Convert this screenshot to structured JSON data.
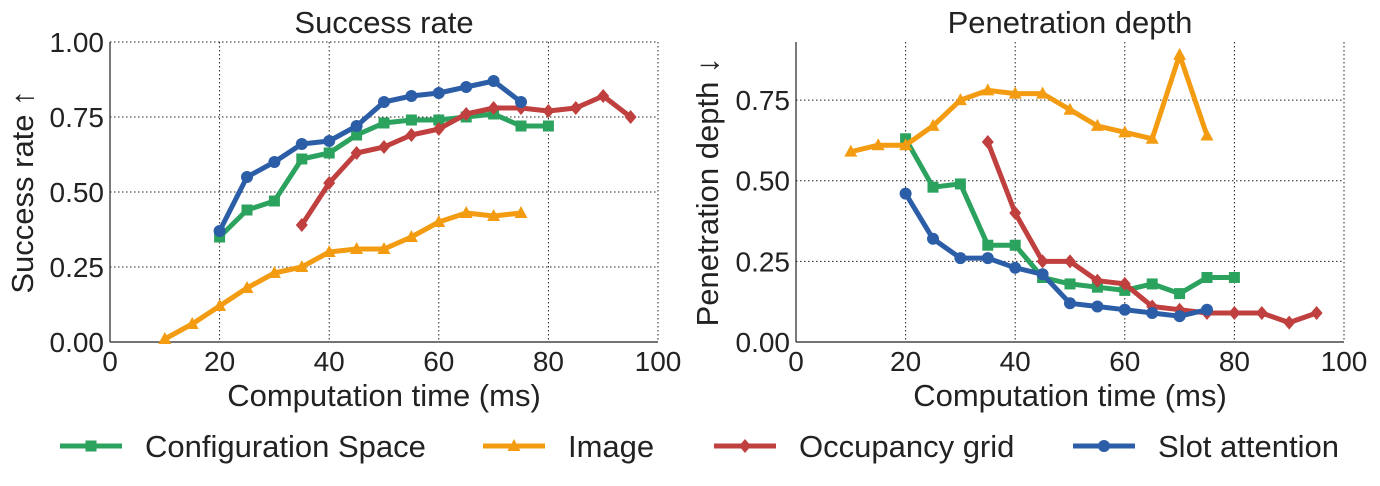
{
  "chart_data": [
    {
      "type": "line",
      "title": "Success rate",
      "xlabel": "Computation time (ms)",
      "ylabel": "Success rate ↑",
      "xlim": [
        0,
        100
      ],
      "ylim": [
        0,
        1.0
      ],
      "xticks": [
        0,
        20,
        40,
        60,
        80,
        100
      ],
      "xtick_labels": [
        "0",
        "20",
        "40",
        "60",
        "80",
        "100"
      ],
      "yticks": [
        0,
        0.25,
        0.5,
        0.75,
        1.0
      ],
      "ytick_labels": [
        "0.00",
        "0.25",
        "0.50",
        "0.75",
        "1.00"
      ],
      "grid": true,
      "series": [
        {
          "name": "Configuration Space",
          "x": [
            20,
            25,
            30,
            35,
            40,
            45,
            50,
            55,
            60,
            65,
            70,
            75,
            80
          ],
          "y": [
            0.35,
            0.44,
            0.47,
            0.61,
            0.63,
            0.69,
            0.73,
            0.74,
            0.74,
            0.75,
            0.76,
            0.72,
            0.72
          ]
        },
        {
          "name": "Image",
          "x": [
            10,
            15,
            20,
            25,
            30,
            35,
            40,
            45,
            50,
            55,
            60,
            65,
            70,
            75
          ],
          "y": [
            0.01,
            0.06,
            0.12,
            0.18,
            0.23,
            0.25,
            0.3,
            0.31,
            0.31,
            0.35,
            0.4,
            0.43,
            0.42,
            0.43
          ]
        },
        {
          "name": "Occupancy grid",
          "x": [
            35,
            40,
            45,
            50,
            55,
            60,
            65,
            70,
            75,
            80,
            85,
            90,
            95
          ],
          "y": [
            0.39,
            0.53,
            0.63,
            0.65,
            0.69,
            0.71,
            0.76,
            0.78,
            0.78,
            0.77,
            0.78,
            0.82,
            0.75
          ]
        },
        {
          "name": "Slot attention",
          "x": [
            20,
            25,
            30,
            35,
            40,
            45,
            50,
            55,
            60,
            65,
            70,
            75
          ],
          "y": [
            0.37,
            0.55,
            0.6,
            0.66,
            0.67,
            0.72,
            0.8,
            0.82,
            0.83,
            0.85,
            0.87,
            0.8
          ]
        }
      ]
    },
    {
      "type": "line",
      "title": "Penetration depth",
      "xlabel": "Computation time (ms)",
      "ylabel": "Penetration depth ↓",
      "xlim": [
        0,
        100
      ],
      "ylim": [
        0,
        0.93
      ],
      "xticks": [
        0,
        20,
        40,
        60,
        80,
        100
      ],
      "xtick_labels": [
        "0",
        "20",
        "40",
        "60",
        "80",
        "100"
      ],
      "yticks": [
        0,
        0.25,
        0.5,
        0.75
      ],
      "ytick_labels": [
        "0.00",
        "0.25",
        "0.50",
        "0.75"
      ],
      "grid": true,
      "series": [
        {
          "name": "Configuration Space",
          "x": [
            20,
            25,
            30,
            35,
            40,
            45,
            50,
            55,
            60,
            65,
            70,
            75,
            80
          ],
          "y": [
            0.63,
            0.48,
            0.49,
            0.3,
            0.3,
            0.2,
            0.18,
            0.17,
            0.16,
            0.18,
            0.15,
            0.2,
            0.2
          ]
        },
        {
          "name": "Image",
          "x": [
            10,
            15,
            20,
            25,
            30,
            35,
            40,
            45,
            50,
            55,
            60,
            65,
            70,
            75
          ],
          "y": [
            0.59,
            0.61,
            0.61,
            0.67,
            0.75,
            0.78,
            0.77,
            0.77,
            0.72,
            0.67,
            0.65,
            0.63,
            0.89,
            0.64
          ]
        },
        {
          "name": "Occupancy grid",
          "x": [
            35,
            40,
            45,
            50,
            55,
            60,
            65,
            70,
            75,
            80,
            85,
            90,
            95
          ],
          "y": [
            0.62,
            0.4,
            0.25,
            0.25,
            0.19,
            0.18,
            0.11,
            0.1,
            0.09,
            0.09,
            0.09,
            0.06,
            0.09
          ]
        },
        {
          "name": "Slot attention",
          "x": [
            20,
            25,
            30,
            35,
            40,
            45,
            50,
            55,
            60,
            65,
            70,
            75
          ],
          "y": [
            0.46,
            0.32,
            0.26,
            0.26,
            0.23,
            0.21,
            0.12,
            0.11,
            0.1,
            0.09,
            0.08,
            0.1
          ]
        }
      ]
    }
  ],
  "legend": {
    "placement": "bottom",
    "entries": [
      {
        "label": "Configuration Space",
        "color": "#2ca25f",
        "marker": "square"
      },
      {
        "label": "Image",
        "color": "#f39c12",
        "marker": "triangle"
      },
      {
        "label": "Occupancy grid",
        "color": "#c0403f",
        "marker": "diamond"
      },
      {
        "label": "Slot attention",
        "color": "#2c5ea8",
        "marker": "circle"
      }
    ]
  }
}
